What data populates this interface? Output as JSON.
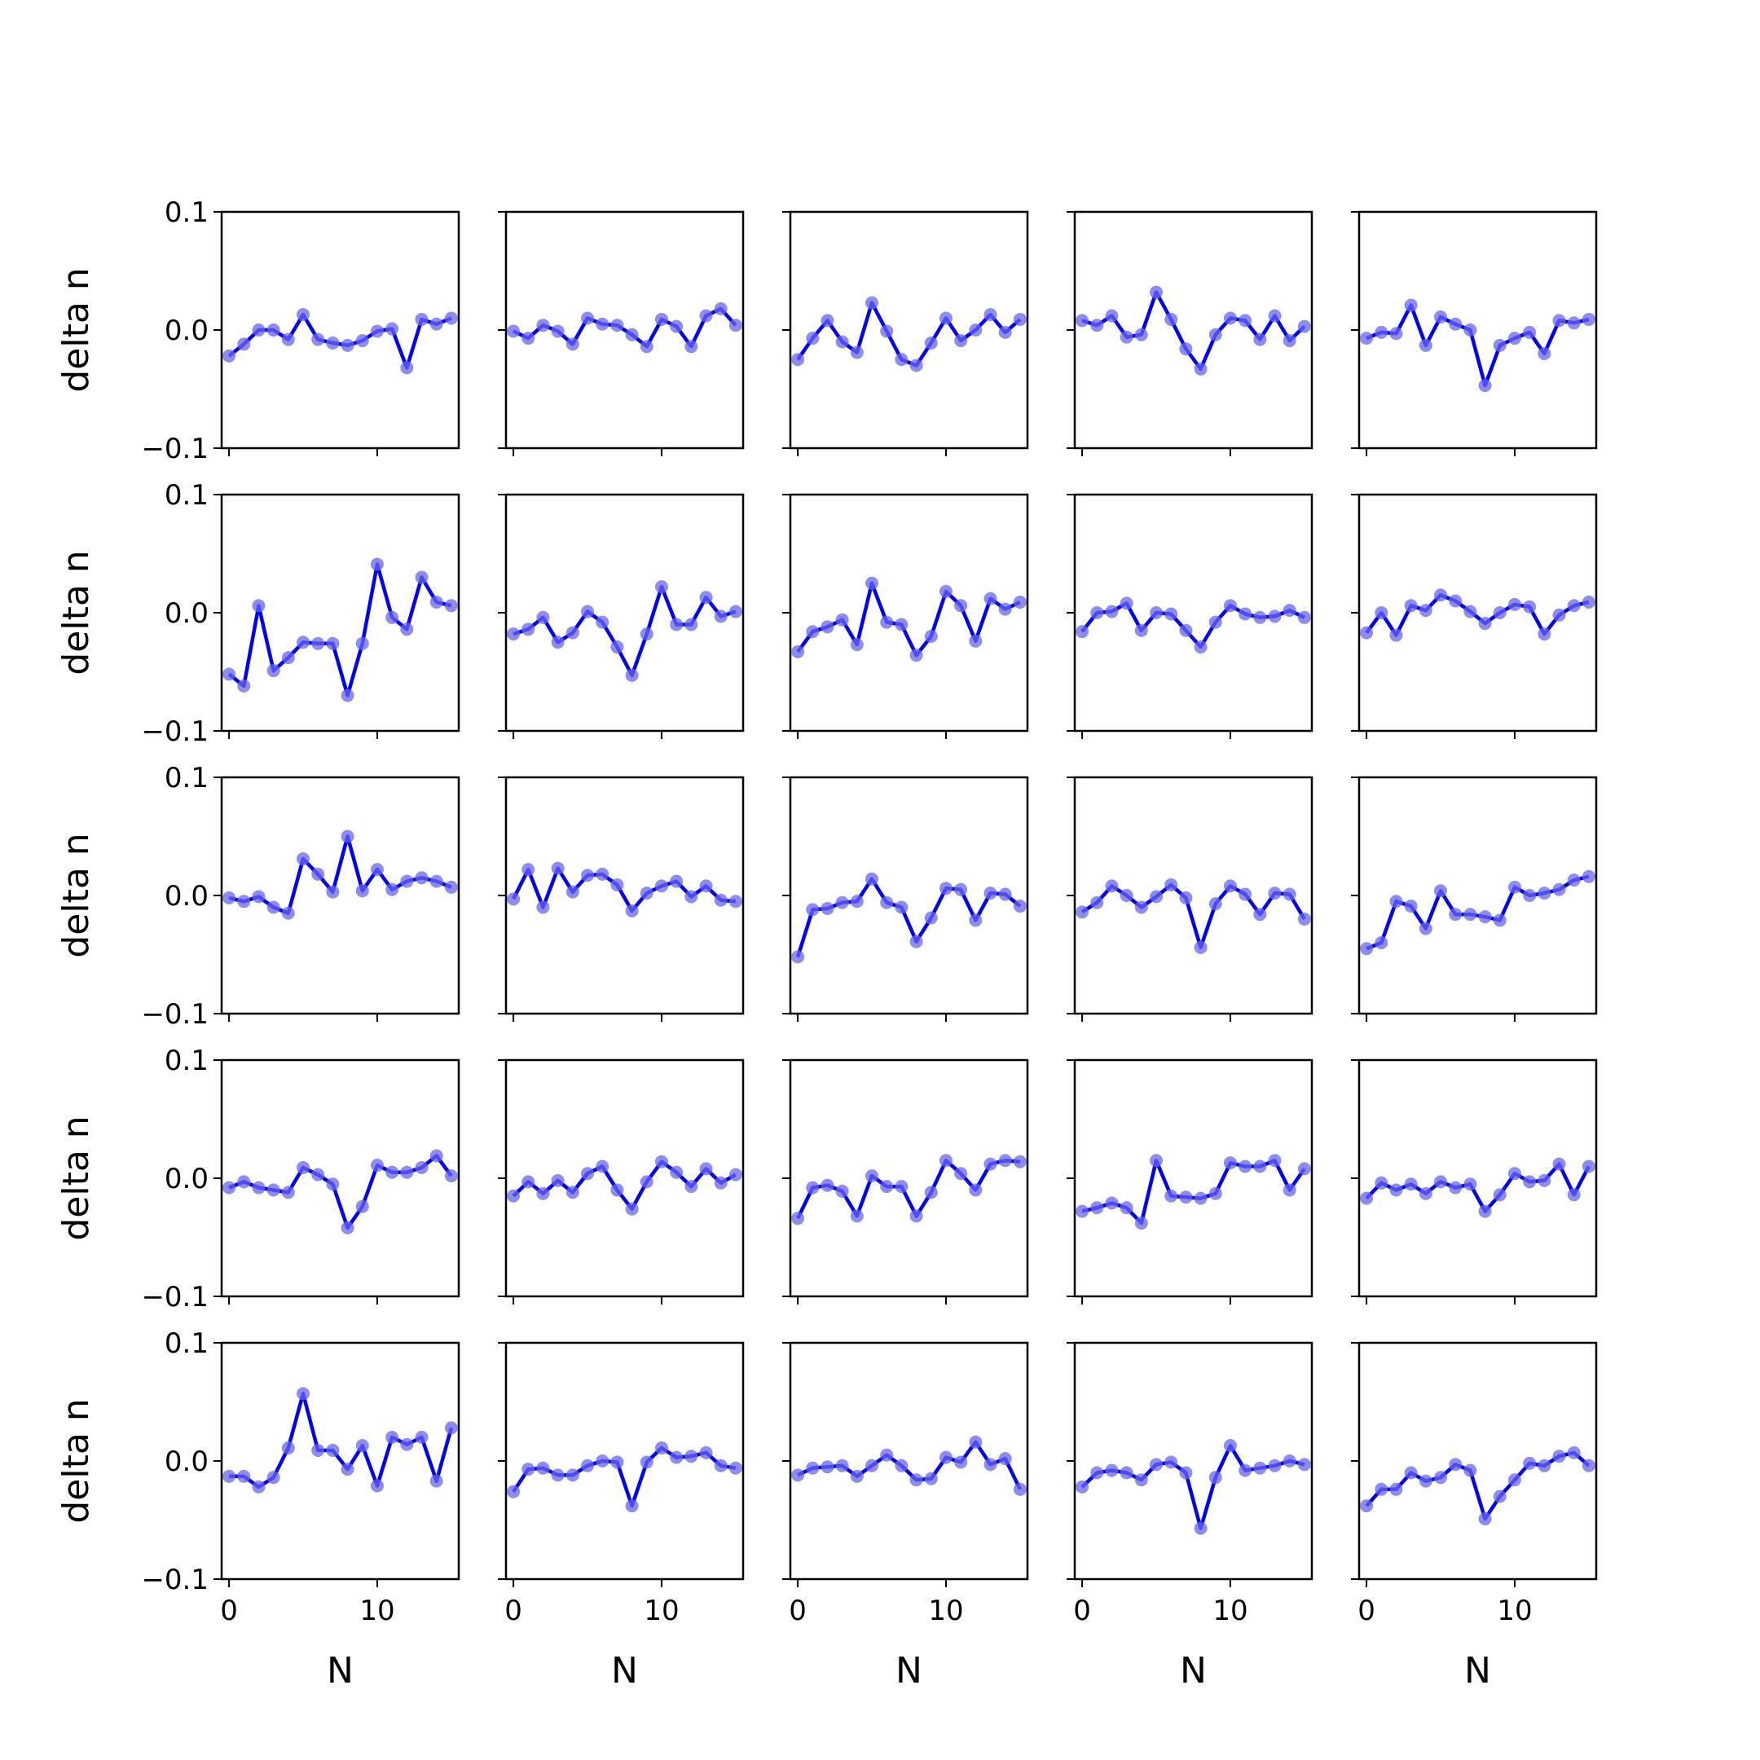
{
  "chart_data": {
    "type": "line",
    "layout": "5x5 grid of subplots",
    "xlabel": "N",
    "ylabel": "delta n",
    "ylim": [
      -0.1,
      0.1
    ],
    "xlim": [
      -0.5,
      15.5
    ],
    "yticks": [
      "0.1",
      "0.0",
      "−0.1"
    ],
    "xticks": [
      "0",
      "10"
    ],
    "ytick_values": [
      0.1,
      0.0,
      -0.1
    ],
    "xtick_values": [
      0,
      10
    ],
    "x": [
      0,
      1,
      2,
      3,
      4,
      5,
      6,
      7,
      8,
      9,
      10,
      11,
      12,
      13,
      14,
      15
    ],
    "grid": false,
    "legend": "none",
    "line_color": "#0000ff",
    "marker_color": "#6666ee",
    "panels": [
      {
        "row": 1,
        "col": 1,
        "values": [
          -0.022,
          -0.012,
          0.0,
          0.0,
          -0.008,
          0.013,
          -0.008,
          -0.011,
          -0.013,
          -0.009,
          -0.001,
          0.001,
          -0.032,
          0.009,
          0.005,
          0.01
        ]
      },
      {
        "row": 1,
        "col": 2,
        "values": [
          -0.001,
          -0.007,
          0.004,
          -0.001,
          -0.012,
          0.01,
          0.005,
          0.004,
          -0.004,
          -0.014,
          0.009,
          0.003,
          -0.014,
          0.012,
          0.018,
          0.004
        ]
      },
      {
        "row": 1,
        "col": 3,
        "values": [
          -0.025,
          -0.007,
          0.008,
          -0.01,
          -0.019,
          0.023,
          -0.001,
          -0.025,
          -0.03,
          -0.011,
          0.01,
          -0.009,
          0.0,
          0.013,
          -0.002,
          0.009
        ]
      },
      {
        "row": 1,
        "col": 4,
        "values": [
          0.008,
          0.004,
          0.012,
          -0.006,
          -0.004,
          0.032,
          0.009,
          -0.016,
          -0.033,
          -0.004,
          0.01,
          0.008,
          -0.008,
          0.012,
          -0.009,
          0.003
        ]
      },
      {
        "row": 1,
        "col": 5,
        "values": [
          -0.007,
          -0.002,
          -0.003,
          0.021,
          -0.013,
          0.011,
          0.005,
          0.0,
          -0.047,
          -0.013,
          -0.007,
          -0.002,
          -0.02,
          0.008,
          0.006,
          0.009
        ]
      },
      {
        "row": 2,
        "col": 1,
        "values": [
          -0.052,
          -0.062,
          0.006,
          -0.049,
          -0.038,
          -0.025,
          -0.026,
          -0.026,
          -0.07,
          -0.026,
          0.041,
          -0.004,
          -0.014,
          0.03,
          0.009,
          0.006
        ]
      },
      {
        "row": 2,
        "col": 2,
        "values": [
          -0.018,
          -0.014,
          -0.004,
          -0.025,
          -0.017,
          0.001,
          -0.008,
          -0.029,
          -0.053,
          -0.018,
          0.022,
          -0.01,
          -0.01,
          0.013,
          -0.003,
          0.001
        ]
      },
      {
        "row": 2,
        "col": 3,
        "values": [
          -0.033,
          -0.016,
          -0.012,
          -0.006,
          -0.027,
          0.025,
          -0.008,
          -0.01,
          -0.036,
          -0.02,
          0.018,
          0.006,
          -0.024,
          0.012,
          0.003,
          0.009
        ]
      },
      {
        "row": 2,
        "col": 4,
        "values": [
          -0.016,
          0.0,
          0.001,
          0.008,
          -0.015,
          0.0,
          -0.001,
          -0.015,
          -0.029,
          -0.008,
          0.006,
          -0.001,
          -0.004,
          -0.003,
          0.002,
          -0.004
        ]
      },
      {
        "row": 2,
        "col": 5,
        "values": [
          -0.017,
          0.0,
          -0.019,
          0.006,
          0.002,
          0.015,
          0.01,
          0.001,
          -0.009,
          0.0,
          0.007,
          0.005,
          -0.018,
          -0.002,
          0.006,
          0.009
        ]
      },
      {
        "row": 3,
        "col": 1,
        "values": [
          -0.002,
          -0.005,
          -0.001,
          -0.01,
          -0.015,
          0.031,
          0.018,
          0.003,
          0.05,
          0.004,
          0.022,
          0.005,
          0.012,
          0.015,
          0.012,
          0.007
        ]
      },
      {
        "row": 3,
        "col": 2,
        "values": [
          -0.003,
          0.022,
          -0.01,
          0.023,
          0.003,
          0.017,
          0.018,
          0.009,
          -0.013,
          0.002,
          0.008,
          0.012,
          -0.001,
          0.008,
          -0.004,
          -0.005
        ]
      },
      {
        "row": 3,
        "col": 3,
        "values": [
          -0.052,
          -0.012,
          -0.011,
          -0.006,
          -0.005,
          0.014,
          -0.006,
          -0.01,
          -0.039,
          -0.019,
          0.006,
          0.005,
          -0.021,
          0.002,
          0.001,
          -0.009
        ]
      },
      {
        "row": 3,
        "col": 4,
        "values": [
          -0.014,
          -0.006,
          0.008,
          0.0,
          -0.01,
          -0.001,
          0.009,
          -0.002,
          -0.044,
          -0.007,
          0.008,
          0.001,
          -0.016,
          0.002,
          0.001,
          -0.02
        ]
      },
      {
        "row": 3,
        "col": 5,
        "values": [
          -0.045,
          -0.04,
          -0.005,
          -0.009,
          -0.028,
          0.004,
          -0.016,
          -0.016,
          -0.018,
          -0.021,
          0.007,
          0.0,
          0.002,
          0.005,
          0.013,
          0.016
        ]
      },
      {
        "row": 4,
        "col": 1,
        "values": [
          -0.008,
          -0.003,
          -0.008,
          -0.01,
          -0.012,
          0.009,
          0.003,
          -0.005,
          -0.042,
          -0.024,
          0.011,
          0.005,
          0.005,
          0.009,
          0.019,
          0.002
        ]
      },
      {
        "row": 4,
        "col": 2,
        "values": [
          -0.015,
          -0.003,
          -0.013,
          -0.002,
          -0.012,
          0.004,
          0.01,
          -0.01,
          -0.026,
          -0.003,
          0.014,
          0.005,
          -0.007,
          0.008,
          -0.004,
          0.003
        ]
      },
      {
        "row": 4,
        "col": 3,
        "values": [
          -0.034,
          -0.008,
          -0.006,
          -0.011,
          -0.032,
          0.002,
          -0.007,
          -0.007,
          -0.032,
          -0.012,
          0.015,
          0.004,
          -0.01,
          0.012,
          0.015,
          0.014
        ]
      },
      {
        "row": 4,
        "col": 4,
        "values": [
          -0.028,
          -0.025,
          -0.021,
          -0.025,
          -0.038,
          0.015,
          -0.015,
          -0.016,
          -0.017,
          -0.013,
          0.013,
          0.01,
          0.01,
          0.015,
          -0.01,
          0.008
        ]
      },
      {
        "row": 4,
        "col": 5,
        "values": [
          -0.017,
          -0.004,
          -0.01,
          -0.005,
          -0.013,
          -0.003,
          -0.008,
          -0.005,
          -0.028,
          -0.014,
          0.004,
          -0.003,
          -0.002,
          0.012,
          -0.014,
          0.01
        ]
      },
      {
        "row": 5,
        "col": 1,
        "values": [
          -0.013,
          -0.013,
          -0.022,
          -0.014,
          0.011,
          0.057,
          0.009,
          0.009,
          -0.007,
          0.013,
          -0.021,
          0.02,
          0.014,
          0.02,
          -0.017,
          0.028
        ]
      },
      {
        "row": 5,
        "col": 2,
        "values": [
          -0.026,
          -0.007,
          -0.006,
          -0.012,
          -0.012,
          -0.004,
          0.0,
          -0.001,
          -0.038,
          -0.001,
          0.011,
          0.003,
          0.004,
          0.007,
          -0.004,
          -0.006
        ]
      },
      {
        "row": 5,
        "col": 3,
        "values": [
          -0.012,
          -0.006,
          -0.005,
          -0.004,
          -0.013,
          -0.004,
          0.005,
          -0.004,
          -0.016,
          -0.015,
          0.003,
          -0.001,
          0.016,
          -0.003,
          0.002,
          -0.024
        ]
      },
      {
        "row": 5,
        "col": 4,
        "values": [
          -0.022,
          -0.01,
          -0.008,
          -0.01,
          -0.016,
          -0.003,
          -0.001,
          -0.01,
          -0.057,
          -0.014,
          0.013,
          -0.008,
          -0.006,
          -0.004,
          0.0,
          -0.003
        ]
      },
      {
        "row": 5,
        "col": 5,
        "values": [
          -0.038,
          -0.024,
          -0.024,
          -0.01,
          -0.017,
          -0.014,
          -0.003,
          -0.008,
          -0.049,
          -0.03,
          -0.016,
          -0.002,
          -0.004,
          0.004,
          0.007,
          -0.004
        ]
      }
    ]
  }
}
